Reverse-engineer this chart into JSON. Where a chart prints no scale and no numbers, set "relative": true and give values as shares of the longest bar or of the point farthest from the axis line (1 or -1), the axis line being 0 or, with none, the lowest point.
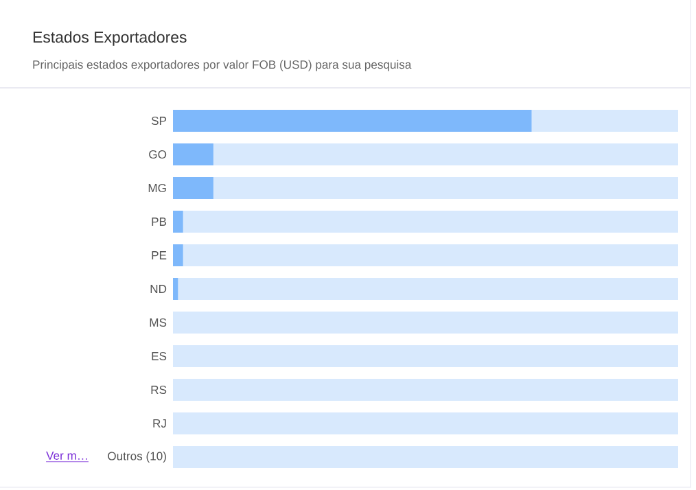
{
  "chart_data": {
    "type": "bar",
    "orientation": "horizontal",
    "stacked": true,
    "relative": true,
    "title": "Estados Exportadores",
    "subtitle": "Principais estados exportadores por valor FOB (USD) para sua pesquisa",
    "categories": [
      "SP",
      "GO",
      "MG",
      "PB",
      "PE",
      "ND",
      "MS",
      "ES",
      "RS",
      "RJ",
      "Outros (10)"
    ],
    "series": [
      {
        "color": "#7eb8fb",
        "values": [
          0.71,
          0.08,
          0.08,
          0.02,
          0.02,
          0.01,
          0,
          0,
          0,
          0,
          0
        ]
      },
      {
        "color": "#d8e9fd",
        "values": [
          0.29,
          0.92,
          0.92,
          0.98,
          0.98,
          0.99,
          1,
          1,
          1,
          1,
          1
        ]
      }
    ],
    "annotations": [
      "Ver m…"
    ]
  }
}
